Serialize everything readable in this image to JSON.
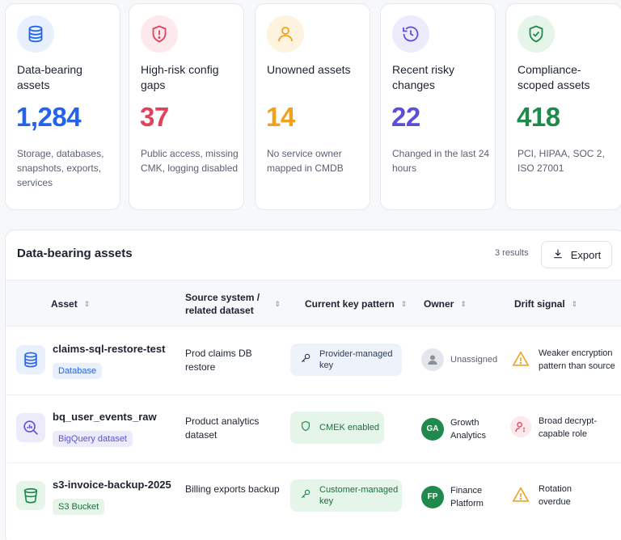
{
  "cards": [
    {
      "title": "Data-bearing assets",
      "value": "1,284",
      "desc": "Storage, databases, snapshots, exports, services",
      "icon": "database-icon",
      "color": "#2563eb",
      "bg": "#e8f0fe"
    },
    {
      "title": "High-risk config gaps",
      "value": "37",
      "desc": "Public access, missing CMK, logging disabled",
      "icon": "shield-alert-icon",
      "color": "#e0415b",
      "bg": "#fde8ec"
    },
    {
      "title": "Unowned assets",
      "value": "14",
      "desc": "No service owner mapped in CMDB",
      "icon": "user-icon",
      "color": "#f0a21c",
      "bg": "#fdf3de"
    },
    {
      "title": "Recent risky changes",
      "value": "22",
      "desc": "Changed in the last 24 hours",
      "icon": "history-icon",
      "color": "#5b4fd8",
      "bg": "#ecebfc"
    },
    {
      "title": "Compliance-scoped assets",
      "value": "418",
      "desc": "PCI, HIPAA, SOC 2, ISO 27001",
      "icon": "shield-check-icon",
      "color": "#1f8a4c",
      "bg": "#e5f5ea"
    }
  ],
  "panel": {
    "title": "Data-bearing assets",
    "results": "3 results",
    "export_label": "Export",
    "columns": [
      "Asset",
      "Source system / related dataset",
      "Current key pattern",
      "Owner",
      "Drift signal"
    ]
  },
  "rows": [
    {
      "asset": "claims-sql-restore-test",
      "tag": "Database",
      "asset_icon": "database-icon",
      "source": "Prod claims DB restore",
      "key_pattern": "Provider-managed key",
      "key_icon": "key-icon",
      "owner": "Unassigned",
      "owner_initials": "",
      "drift": "Weaker encryption pattern than source",
      "drift_icon": "warning-icon"
    },
    {
      "asset": "bq_user_events_raw",
      "tag": "BigQuery dataset",
      "asset_icon": "analytics-search-icon",
      "source": "Product analytics dataset",
      "key_pattern": "CMEK enabled",
      "key_icon": "shield-icon",
      "owner": "Growth Analytics",
      "owner_initials": "GA",
      "drift": "Broad decrypt-capable role",
      "drift_icon": "user-alert-icon"
    },
    {
      "asset": "s3-invoice-backup-2025",
      "tag": "S3 Bucket",
      "asset_icon": "bucket-icon",
      "source": "Billing exports backup",
      "key_pattern": "Customer-managed key",
      "key_icon": "key-icon",
      "owner": "Finance Platform",
      "owner_initials": "FP",
      "drift": "Rotation overdue",
      "drift_icon": "warning-icon"
    }
  ]
}
